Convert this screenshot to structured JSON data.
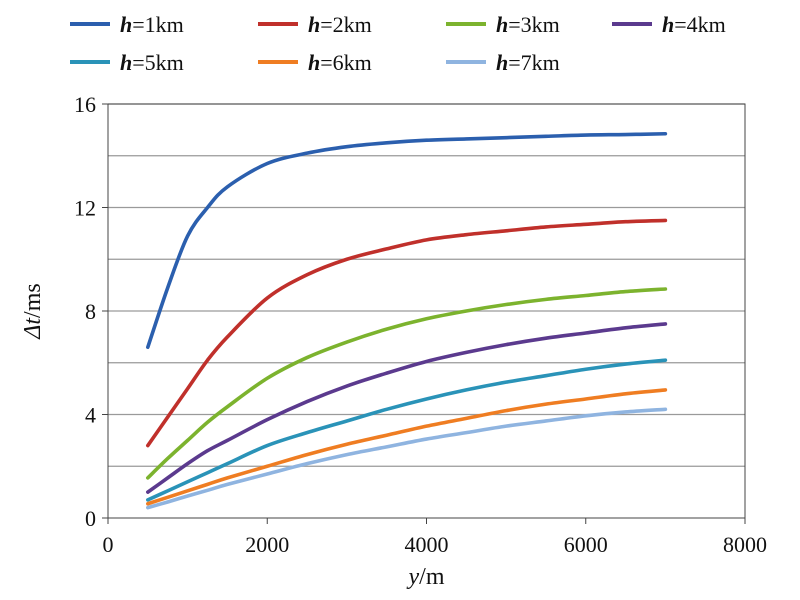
{
  "chart_data": {
    "type": "line",
    "title": "",
    "xlabel": {
      "var": "y",
      "unit": "/m"
    },
    "ylabel": {
      "var": "Δt",
      "unit": "/ms"
    },
    "xlim": [
      0,
      8000
    ],
    "ylim": [
      0,
      16
    ],
    "x_ticks": [
      0,
      2000,
      4000,
      6000,
      8000
    ],
    "y_ticks": [
      0,
      4,
      8,
      12,
      16
    ],
    "gridlines_y": [
      2,
      4,
      6,
      8,
      10,
      12,
      14,
      16
    ],
    "grid": "horizontal",
    "legend_position": "top",
    "x": [
      500,
      750,
      1000,
      1250,
      1500,
      2000,
      2500,
      3000,
      3500,
      4000,
      4500,
      5000,
      5500,
      6000,
      6500,
      7000
    ],
    "series": [
      {
        "var": "h",
        "value": "=1km",
        "color": "#2b5fae",
        "values": [
          6.6,
          8.9,
          10.9,
          12.0,
          12.8,
          13.7,
          14.1,
          14.35,
          14.5,
          14.6,
          14.65,
          14.7,
          14.75,
          14.8,
          14.82,
          14.85
        ]
      },
      {
        "var": "h",
        "value": "=2km",
        "color": "#c0302b",
        "values": [
          2.8,
          3.9,
          5.0,
          6.1,
          7.0,
          8.5,
          9.4,
          10.0,
          10.4,
          10.75,
          10.95,
          11.1,
          11.25,
          11.35,
          11.45,
          11.5
        ]
      },
      {
        "var": "h",
        "value": "=3km",
        "color": "#7cb32e",
        "values": [
          1.55,
          2.3,
          3.0,
          3.7,
          4.3,
          5.4,
          6.2,
          6.8,
          7.3,
          7.7,
          8.0,
          8.25,
          8.45,
          8.6,
          8.75,
          8.85
        ]
      },
      {
        "var": "h",
        "value": "=4km",
        "color": "#5b3a8e",
        "values": [
          1.0,
          1.55,
          2.1,
          2.6,
          3.0,
          3.8,
          4.5,
          5.1,
          5.6,
          6.05,
          6.4,
          6.7,
          6.95,
          7.15,
          7.35,
          7.5
        ]
      },
      {
        "var": "h",
        "value": "=5km",
        "color": "#2a93b8",
        "values": [
          0.7,
          1.05,
          1.4,
          1.75,
          2.1,
          2.8,
          3.3,
          3.75,
          4.2,
          4.6,
          4.95,
          5.25,
          5.5,
          5.75,
          5.95,
          6.1
        ]
      },
      {
        "var": "h",
        "value": "=6km",
        "color": "#ef7d22",
        "values": [
          0.55,
          0.8,
          1.05,
          1.3,
          1.55,
          2.0,
          2.45,
          2.85,
          3.2,
          3.55,
          3.85,
          4.15,
          4.4,
          4.6,
          4.8,
          4.95
        ]
      },
      {
        "var": "h",
        "value": "=7km",
        "color": "#8fb4e0",
        "values": [
          0.4,
          0.62,
          0.85,
          1.07,
          1.3,
          1.7,
          2.1,
          2.45,
          2.75,
          3.05,
          3.3,
          3.55,
          3.75,
          3.95,
          4.1,
          4.2
        ]
      }
    ]
  }
}
